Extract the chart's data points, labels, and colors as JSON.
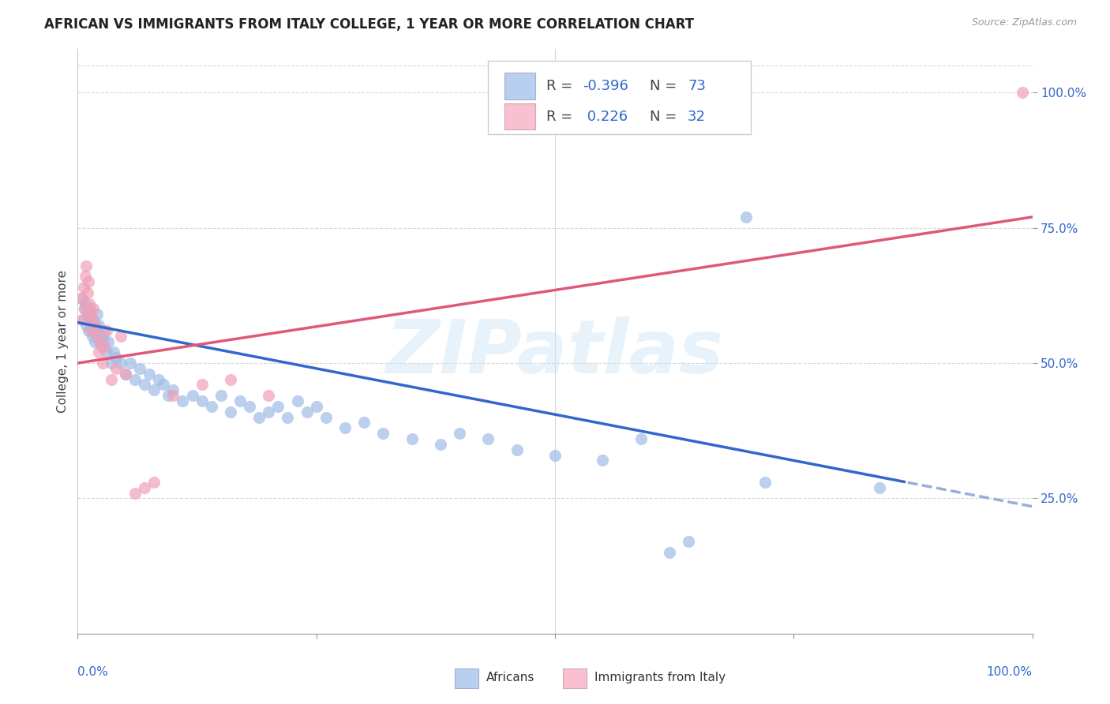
{
  "title": "AFRICAN VS IMMIGRANTS FROM ITALY COLLEGE, 1 YEAR OR MORE CORRELATION CHART",
  "source": "Source: ZipAtlas.com",
  "ylabel": "College, 1 year or more",
  "watermark": "ZIPatlas",
  "africans_color": "#a0bce8",
  "immigrants_color": "#f0a0b8",
  "africans_line_color": "#3366cc",
  "africans_line_dash_color": "#99aedd",
  "immigrants_line_color": "#e05878",
  "africans_R": -0.396,
  "africans_N": 73,
  "immigrants_R": 0.226,
  "immigrants_N": 32,
  "legend_blue_color": "#b8d0f0",
  "legend_pink_color": "#f8c0d0",
  "ytick_vals": [
    0.25,
    0.5,
    0.75,
    1.0
  ],
  "ytick_labels": [
    "25.0%",
    "50.0%",
    "75.0%",
    "100.0%"
  ],
  "grid_color": "#d8d8d8",
  "background_color": "#ffffff",
  "title_fontsize": 12,
  "axis_label_fontsize": 11,
  "tick_fontsize": 11,
  "source_fontsize": 9,
  "legend_fontsize": 13,
  "africans_x": [
    0.005,
    0.006,
    0.007,
    0.008,
    0.009,
    0.01,
    0.011,
    0.012,
    0.013,
    0.014,
    0.015,
    0.016,
    0.017,
    0.018,
    0.019,
    0.02,
    0.021,
    0.022,
    0.023,
    0.024,
    0.025,
    0.026,
    0.027,
    0.028,
    0.03,
    0.032,
    0.035,
    0.038,
    0.04,
    0.045,
    0.05,
    0.055,
    0.06,
    0.065,
    0.07,
    0.075,
    0.08,
    0.085,
    0.09,
    0.095,
    0.1,
    0.11,
    0.12,
    0.13,
    0.14,
    0.15,
    0.16,
    0.17,
    0.18,
    0.19,
    0.2,
    0.21,
    0.22,
    0.23,
    0.24,
    0.25,
    0.26,
    0.28,
    0.3,
    0.32,
    0.35,
    0.38,
    0.4,
    0.43,
    0.46,
    0.5,
    0.55,
    0.59,
    0.62,
    0.64,
    0.7,
    0.72,
    0.84
  ],
  "africans_y": [
    0.62,
    0.58,
    0.6,
    0.61,
    0.57,
    0.59,
    0.56,
    0.58,
    0.6,
    0.57,
    0.55,
    0.58,
    0.56,
    0.54,
    0.57,
    0.59,
    0.55,
    0.57,
    0.54,
    0.56,
    0.53,
    0.55,
    0.54,
    0.56,
    0.52,
    0.54,
    0.5,
    0.52,
    0.51,
    0.5,
    0.48,
    0.5,
    0.47,
    0.49,
    0.46,
    0.48,
    0.45,
    0.47,
    0.46,
    0.44,
    0.45,
    0.43,
    0.44,
    0.43,
    0.42,
    0.44,
    0.41,
    0.43,
    0.42,
    0.4,
    0.41,
    0.42,
    0.4,
    0.43,
    0.41,
    0.42,
    0.4,
    0.38,
    0.39,
    0.37,
    0.36,
    0.35,
    0.37,
    0.36,
    0.34,
    0.33,
    0.32,
    0.36,
    0.15,
    0.17,
    0.77,
    0.28,
    0.27
  ],
  "immigrants_x": [
    0.004,
    0.005,
    0.006,
    0.007,
    0.008,
    0.009,
    0.01,
    0.011,
    0.012,
    0.013,
    0.014,
    0.015,
    0.016,
    0.018,
    0.02,
    0.022,
    0.024,
    0.026,
    0.028,
    0.03,
    0.035,
    0.04,
    0.045,
    0.05,
    0.06,
    0.07,
    0.08,
    0.1,
    0.13,
    0.16,
    0.2,
    0.99
  ],
  "immigrants_y": [
    0.62,
    0.58,
    0.64,
    0.6,
    0.66,
    0.68,
    0.63,
    0.65,
    0.61,
    0.59,
    0.56,
    0.58,
    0.6,
    0.57,
    0.55,
    0.52,
    0.54,
    0.5,
    0.53,
    0.56,
    0.47,
    0.49,
    0.55,
    0.48,
    0.26,
    0.27,
    0.28,
    0.44,
    0.46,
    0.47,
    0.44,
    1.0
  ]
}
